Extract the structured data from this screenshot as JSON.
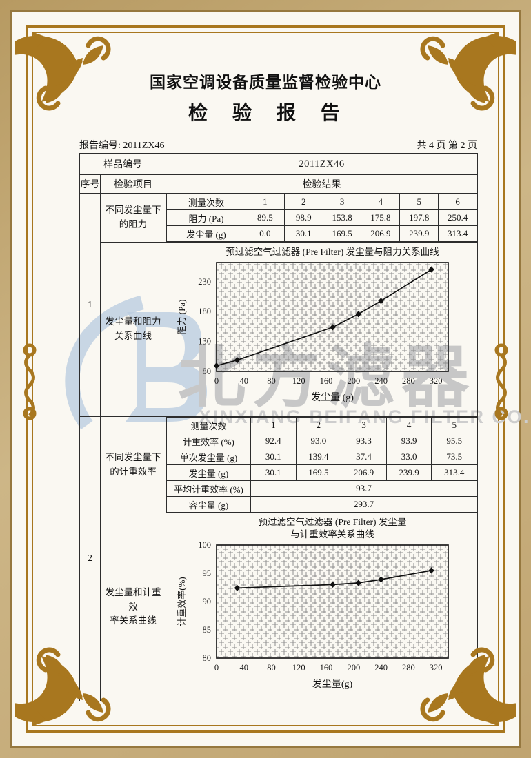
{
  "header": {
    "center_name": "国家空调设备质量监督检验中心",
    "report_title": "检　验　报　告",
    "report_no": "报告编号: 2011ZX46",
    "page_label": "共 4 页 第 2 页"
  },
  "table": {
    "sample_no_label": "样品编号",
    "sample_no": "2011ZX46",
    "col_seq": "序号",
    "col_item": "检验项目",
    "col_result": "检验结果",
    "sections": [
      {
        "seq": "1",
        "item_top": "不同发尘量下\n的阻力",
        "item_bottom": "发尘量和阻力\n关系曲线",
        "subtable": {
          "rows": [
            {
              "label": "测量次数",
              "values": [
                "1",
                "2",
                "3",
                "4",
                "5",
                "6"
              ]
            },
            {
              "label": "阻力 (Pa)",
              "values": [
                "89.5",
                "98.9",
                "153.8",
                "175.8",
                "197.8",
                "250.4"
              ]
            },
            {
              "label": "发尘量 (g)",
              "values": [
                "0.0",
                "30.1",
                "169.5",
                "206.9",
                "239.9",
                "313.4"
              ]
            }
          ]
        }
      },
      {
        "seq": "2",
        "item_top": "不同发尘量下\n的计重效率",
        "item_bottom": "发尘量和计重效\n率关系曲线",
        "subtable": {
          "rows": [
            {
              "label": "测量次数",
              "values": [
                "1",
                "2",
                "3",
                "4",
                "5"
              ]
            },
            {
              "label": "计重效率 (%)",
              "values": [
                "92.4",
                "93.0",
                "93.3",
                "93.9",
                "95.5"
              ]
            },
            {
              "label": "单次发尘量 (g)",
              "values": [
                "30.1",
                "139.4",
                "37.4",
                "33.0",
                "73.5"
              ]
            },
            {
              "label": "发尘量 (g)",
              "values": [
                "30.1",
                "169.5",
                "206.9",
                "239.9",
                "313.4"
              ]
            },
            {
              "label": "平均计重效率 (%)",
              "merged": "93.7"
            },
            {
              "label": "容尘量 (g)",
              "merged": "293.7"
            }
          ]
        }
      }
    ]
  },
  "chart_data": [
    {
      "type": "line",
      "title": "预过滤空气过滤器 (Pre Filter) 发尘量与阻力关系曲线",
      "xlabel": "发尘量 (g)",
      "ylabel": "阻力 (Pa)",
      "x": [
        0,
        30.1,
        169.5,
        206.9,
        239.9,
        313.4
      ],
      "y": [
        89.5,
        98.9,
        153.8,
        175.8,
        197.8,
        250.4
      ],
      "xlim": [
        0,
        338
      ],
      "ylim": [
        80,
        262
      ],
      "xticks": [
        0,
        40,
        80,
        120,
        160,
        200,
        240,
        280,
        320
      ],
      "yticks": [
        80,
        130,
        180,
        230
      ],
      "grid": "crosshatch",
      "marker": "diamond",
      "legend": "none"
    },
    {
      "type": "line",
      "title_lines": [
        "预过滤空气过滤器 (Pre Filter) 发尘量",
        "与计重效率关系曲线"
      ],
      "xlabel": "发尘量(g)",
      "ylabel": "计重效率(%)",
      "x": [
        30.1,
        169.5,
        206.9,
        239.9,
        313.4
      ],
      "y": [
        92.4,
        93.0,
        93.3,
        93.9,
        95.5
      ],
      "xlim": [
        0,
        338
      ],
      "ylim": [
        80,
        100
      ],
      "xticks": [
        0,
        40,
        80,
        120,
        160,
        200,
        240,
        280,
        320
      ],
      "yticks": [
        80,
        85,
        90,
        95,
        100
      ],
      "grid": "crosshatch",
      "marker": "diamond",
      "legend": "none"
    }
  ],
  "watermark": {
    "logo_letter": "B",
    "cn": "北方滤器",
    "en": "XINXIANG BEIFANG FILTER CO.,LTD."
  }
}
